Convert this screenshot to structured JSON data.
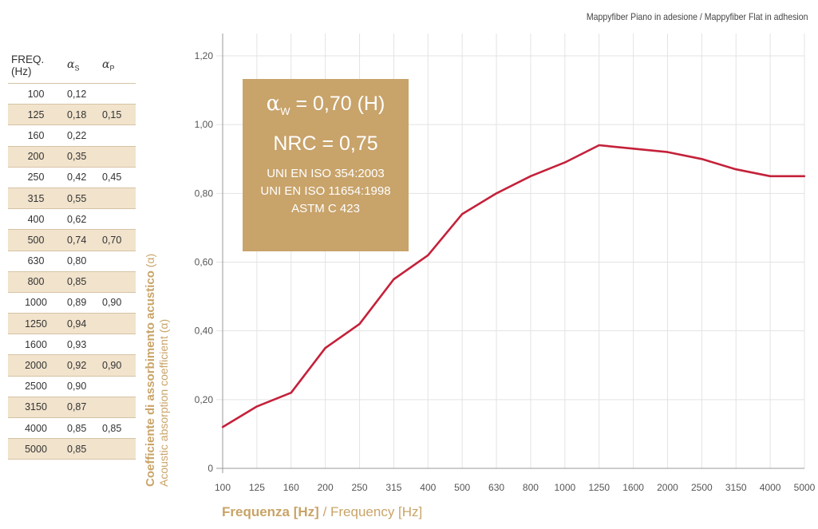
{
  "title": "Mappyfiber Piano in adesione / Mappyfiber Flat in adhesion",
  "table": {
    "headers": {
      "freq": "FREQ.(Hz)",
      "as_symbol": "α",
      "as_sub": "S",
      "ap_symbol": "α",
      "ap_sub": "P"
    },
    "rows": [
      {
        "freq": "100",
        "as": "0,12",
        "ap": ""
      },
      {
        "freq": "125",
        "as": "0,18",
        "ap": "0,15"
      },
      {
        "freq": "160",
        "as": "0,22",
        "ap": ""
      },
      {
        "freq": "200",
        "as": "0,35",
        "ap": ""
      },
      {
        "freq": "250",
        "as": "0,42",
        "ap": "0,45"
      },
      {
        "freq": "315",
        "as": "0,55",
        "ap": ""
      },
      {
        "freq": "400",
        "as": "0,62",
        "ap": ""
      },
      {
        "freq": "500",
        "as": "0,74",
        "ap": "0,70"
      },
      {
        "freq": "630",
        "as": "0,80",
        "ap": ""
      },
      {
        "freq": "800",
        "as": "0,85",
        "ap": ""
      },
      {
        "freq": "1000",
        "as": "0,89",
        "ap": "0,90"
      },
      {
        "freq": "1250",
        "as": "0,94",
        "ap": ""
      },
      {
        "freq": "1600",
        "as": "0,93",
        "ap": ""
      },
      {
        "freq": "2000",
        "as": "0,92",
        "ap": "0,90"
      },
      {
        "freq": "2500",
        "as": "0,90",
        "ap": ""
      },
      {
        "freq": "3150",
        "as": "0,87",
        "ap": ""
      },
      {
        "freq": "4000",
        "as": "0,85",
        "ap": "0,85"
      },
      {
        "freq": "5000",
        "as": "0,85",
        "ap": ""
      }
    ]
  },
  "infobox": {
    "alpha_symbol": "α",
    "alpha_sub": "W",
    "alpha_value": " = 0,70 (H)",
    "nrc": "NRC = 0,75",
    "standard1": "UNI EN ISO 354:2003",
    "standard2": "UNI EN ISO 11654:1998",
    "standard3": "ASTM C 423"
  },
  "ylabel": {
    "it_bold": "Coefficiente di assorbimento acustico",
    "it_symbol": " (α)",
    "en": "Acoustic absorption coefficient (α)"
  },
  "xlabel": {
    "it_bold": "Frequenza [Hz]",
    "en": " / Frequency [Hz]"
  },
  "colors": {
    "line": "#c4213a",
    "accent": "#c9a468",
    "grid": "#e3e3e3"
  },
  "chart_data": {
    "type": "line",
    "x": [
      "100",
      "125",
      "160",
      "200",
      "250",
      "315",
      "400",
      "500",
      "630",
      "800",
      "1000",
      "1250",
      "1600",
      "2000",
      "2500",
      "3150",
      "4000",
      "5000"
    ],
    "series": [
      {
        "values": [
          0.12,
          0.18,
          0.22,
          0.35,
          0.42,
          0.55,
          0.62,
          0.74,
          0.8,
          0.85,
          0.89,
          0.94,
          0.93,
          0.92,
          0.9,
          0.87,
          0.85,
          0.85
        ]
      }
    ],
    "ylim": [
      0,
      1.2
    ],
    "yticks": [
      0,
      0.2,
      0.4,
      0.6,
      0.8,
      1.0,
      1.2
    ],
    "ytick_labels": [
      "0",
      "0,20",
      "0,40",
      "0,60",
      "0,80",
      "1,00",
      "1,20"
    ],
    "grid": true
  }
}
